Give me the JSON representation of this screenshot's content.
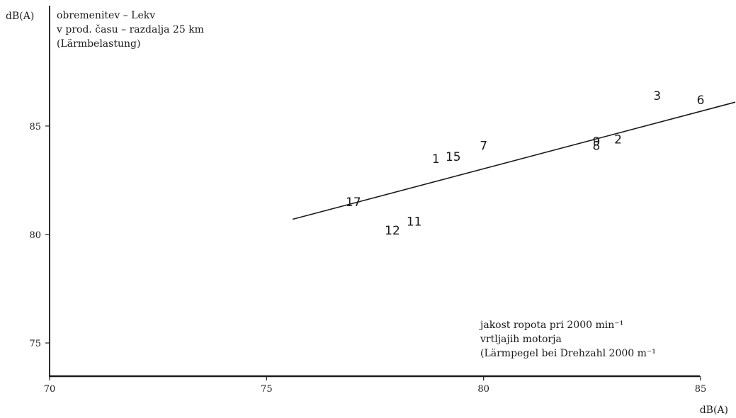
{
  "chart_data": {
    "type": "scatter",
    "title_lines": [
      "obremenitev – Lekv",
      "v prod. času – razdalja 25 km",
      "(Lärmbelastung)"
    ],
    "ylabel": "dB(A)",
    "xlabel": "dB(A)",
    "xlabel_note_lines": [
      "jakost ropota pri 2000 min⁻¹",
      "vrtljajih motorja",
      "(Lärmpegel bei Drehzahl 2000 m⁻¹"
    ],
    "xlim": [
      70,
      85.8
    ],
    "ylim": [
      73.5,
      88
    ],
    "xticks": [
      70,
      75,
      80,
      85
    ],
    "yticks": [
      75,
      80,
      85
    ],
    "xtick_labels": [
      "70",
      "75",
      "80",
      "85"
    ],
    "ytick_labels": [
      "75",
      "80",
      "85"
    ],
    "grid": false,
    "points": [
      {
        "label": "1",
        "x": 78.9,
        "y": 83.3
      },
      {
        "label": "15",
        "x": 79.3,
        "y": 83.4
      },
      {
        "label": "7",
        "x": 80.0,
        "y": 83.9
      },
      {
        "label": "17",
        "x": 77.0,
        "y": 81.3
      },
      {
        "label": "12",
        "x": 77.9,
        "y": 80.0
      },
      {
        "label": "11",
        "x": 78.4,
        "y": 80.4
      },
      {
        "label": "9",
        "x": 82.6,
        "y": 84.1
      },
      {
        "label": "8",
        "x": 82.6,
        "y": 83.9
      },
      {
        "label": "2",
        "x": 83.1,
        "y": 84.2
      },
      {
        "label": "3",
        "x": 84.0,
        "y": 86.2
      },
      {
        "label": "6",
        "x": 85.0,
        "y": 86.0
      }
    ],
    "trend_line": {
      "x": [
        75.6,
        85.8
      ],
      "y": [
        80.7,
        86.1
      ]
    }
  }
}
